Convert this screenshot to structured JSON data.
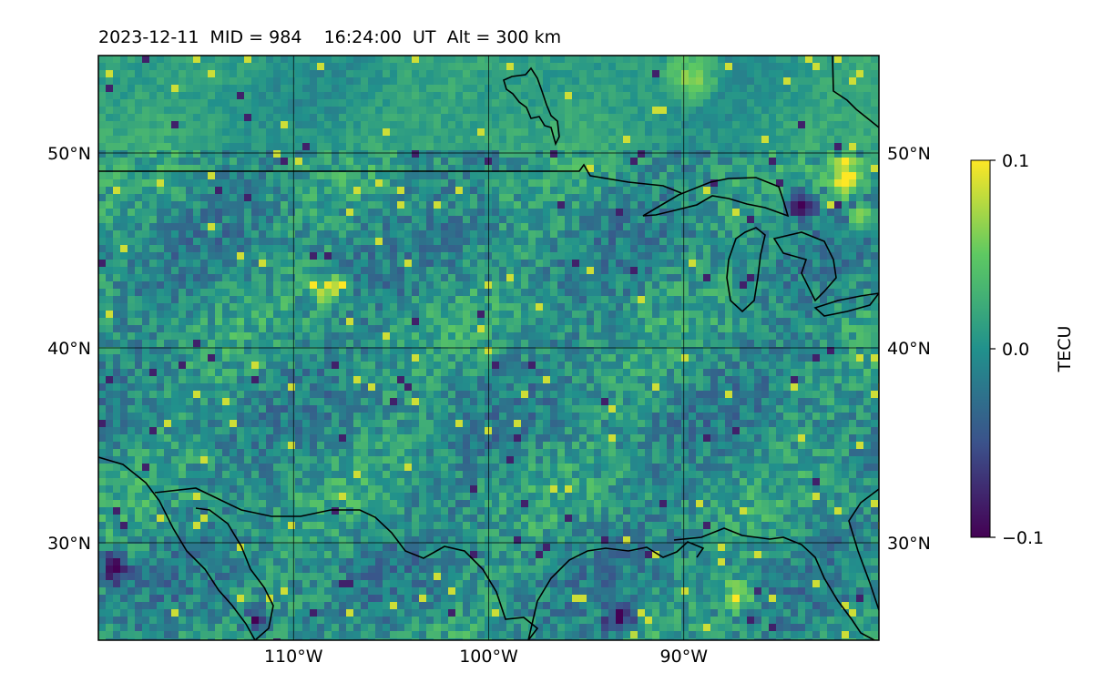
{
  "title": {
    "date": "2023-12-11",
    "mid": "MID = 984",
    "time": "16:24:00  UT",
    "alt": "Alt = 300 km"
  },
  "map": {
    "lon_range": [
      -120,
      -80
    ],
    "lat_range": [
      25,
      55
    ],
    "projection": "plate-carree",
    "grid": true,
    "colormap": "viridis",
    "coastline_color": "#000000"
  },
  "axes": {
    "x_ticks": [
      {
        "value": -110,
        "label": "110°W"
      },
      {
        "value": -100,
        "label": "100°W"
      },
      {
        "value": -90,
        "label": "90°W"
      }
    ],
    "y_ticks": [
      {
        "value": 50,
        "label": "50°N"
      },
      {
        "value": 40,
        "label": "40°N"
      },
      {
        "value": 30,
        "label": "30°N"
      }
    ]
  },
  "colorbar": {
    "label": "TECU",
    "min": -0.1,
    "max": 0.1,
    "ticks": [
      {
        "value": 0.1,
        "label": "0.1"
      },
      {
        "value": 0.0,
        "label": "0.0"
      },
      {
        "value": -0.1,
        "label": "−0.1"
      }
    ],
    "colors": [
      "#440154",
      "#3b528b",
      "#21918c",
      "#5ec962",
      "#fde725"
    ]
  }
}
